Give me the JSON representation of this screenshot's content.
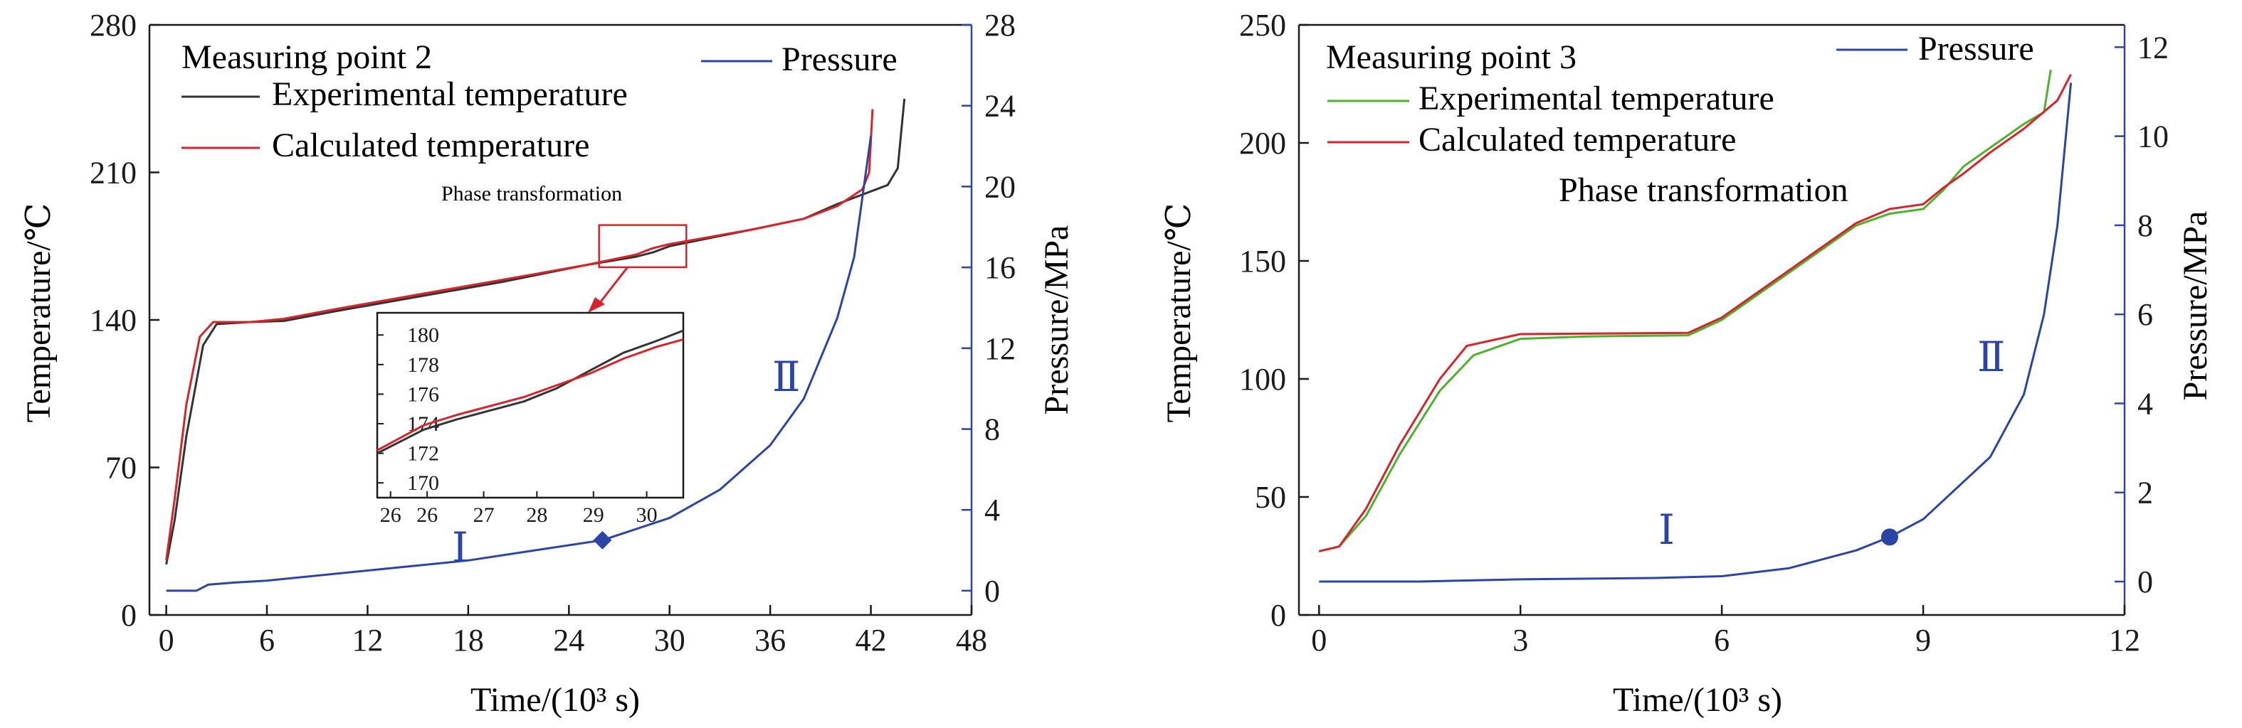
{
  "colors": {
    "axis": "#1a1a1a",
    "pressure_axis": "#2b45a6",
    "pressure": "#2b45a6",
    "calculated": "#d8232a",
    "experimental_1": "#333333",
    "experimental_2": "#4cb32b",
    "highlight_box": "#d8232a"
  },
  "chart_data": [
    {
      "type": "line",
      "panel_title": "Measuring point 2",
      "xlabel": "Time/(10³ s)",
      "ylabel_left": "Temperature/℃",
      "ylabel_right": "Pressure/MPa",
      "xlim": [
        -1,
        48
      ],
      "ylim_left": [
        0,
        280
      ],
      "ylim_right": [
        -1.2,
        28
      ],
      "x_ticks": [
        "0",
        "6",
        "12",
        "18",
        "24",
        "30",
        "36",
        "42",
        "48"
      ],
      "y_left_ticks": [
        "0",
        "70",
        "140",
        "210",
        "280"
      ],
      "y_right_ticks": [
        "0",
        "4",
        "8",
        "12",
        "16",
        "20",
        "24",
        "28"
      ],
      "legend": {
        "pressure": "Pressure",
        "experimental": "Experimental temperature",
        "calculated": "Calculated temperature"
      },
      "series": [
        {
          "name": "Experimental temperature",
          "axis": "left",
          "points": [
            [
              0,
              24
            ],
            [
              0.5,
              45
            ],
            [
              1.2,
              85
            ],
            [
              2.2,
              128
            ],
            [
              3,
              138
            ],
            [
              5,
              139
            ],
            [
              7,
              139.5
            ],
            [
              10,
              144
            ],
            [
              15,
              151
            ],
            [
              20,
              158
            ],
            [
              25,
              166
            ],
            [
              28,
              170
            ],
            [
              29,
              172
            ],
            [
              30,
              175
            ],
            [
              35,
              183
            ],
            [
              38,
              188
            ],
            [
              40,
              195
            ],
            [
              42,
              201
            ],
            [
              43,
              204
            ],
            [
              43.6,
              212
            ],
            [
              44,
              245
            ]
          ]
        },
        {
          "name": "Calculated temperature",
          "axis": "left",
          "points": [
            [
              0,
              26
            ],
            [
              0.5,
              55
            ],
            [
              1.2,
              100
            ],
            [
              2,
              132
            ],
            [
              2.8,
              139
            ],
            [
              5,
              139
            ],
            [
              7,
              140.5
            ],
            [
              10,
              145
            ],
            [
              15,
              152
            ],
            [
              20,
              159
            ],
            [
              25,
              166
            ],
            [
              28,
              171
            ],
            [
              29,
              174
            ],
            [
              30,
              176
            ],
            [
              35,
              183
            ],
            [
              38,
              188
            ],
            [
              40,
              194
            ],
            [
              41.5,
              202
            ],
            [
              41.9,
              210
            ],
            [
              42.1,
              240
            ]
          ]
        },
        {
          "name": "Pressure",
          "axis": "right",
          "points": [
            [
              0,
              0
            ],
            [
              1.8,
              0
            ],
            [
              2.5,
              0.3
            ],
            [
              4,
              0.4
            ],
            [
              6,
              0.5
            ],
            [
              12,
              1.0
            ],
            [
              18,
              1.5
            ],
            [
              22,
              2.0
            ],
            [
              26,
              2.5
            ],
            [
              30,
              3.6
            ],
            [
              33,
              5.0
            ],
            [
              36,
              7.2
            ],
            [
              38,
              9.5
            ],
            [
              40,
              13.5
            ],
            [
              41,
              16.5
            ],
            [
              42,
              22.5
            ]
          ]
        }
      ],
      "marker": {
        "x": 26,
        "y": 2.5,
        "shape": "diamond"
      },
      "annotations": {
        "stage_1": "Ⅰ",
        "stage_2": "Ⅱ"
      },
      "inset": {
        "label": "Phase transformation",
        "xlim": [
          25.8,
          30.4
        ],
        "ylim": [
          169,
          181.5
        ],
        "x_ticks": [
          "26",
          "26",
          "27",
          "28",
          "29",
          "30"
        ],
        "y_ticks": [
          "170",
          "172",
          "174",
          "176",
          "178",
          "180"
        ],
        "experimental": [
          [
            25.8,
            172
          ],
          [
            26.5,
            173.6
          ],
          [
            27,
            174.3
          ],
          [
            28,
            175.5
          ],
          [
            28.5,
            176.4
          ],
          [
            29,
            177.6
          ],
          [
            29.5,
            178.8
          ],
          [
            30,
            179.6
          ],
          [
            30.4,
            180.3
          ]
        ],
        "calculated": [
          [
            25.8,
            172.2
          ],
          [
            26.5,
            173.9
          ],
          [
            27,
            174.6
          ],
          [
            28,
            175.8
          ],
          [
            28.5,
            176.6
          ],
          [
            29,
            177.4
          ],
          [
            29.5,
            178.4
          ],
          [
            30,
            179.2
          ],
          [
            30.4,
            179.7
          ]
        ]
      }
    },
    {
      "type": "line",
      "panel_title": "Measuring point 3",
      "xlabel": "Time/(10³ s)",
      "ylabel_left": "Temperature/℃",
      "ylabel_right": "Pressure/MPa",
      "xlim": [
        -0.3,
        12
      ],
      "ylim_left": [
        0,
        250
      ],
      "ylim_right": [
        -0.75,
        12.5
      ],
      "x_ticks": [
        "0",
        "3",
        "6",
        "9",
        "12"
      ],
      "y_left_ticks": [
        "0",
        "50",
        "100",
        "150",
        "200",
        "250"
      ],
      "y_right_ticks": [
        "0",
        "2",
        "4",
        "6",
        "8",
        "10",
        "12"
      ],
      "legend": {
        "pressure": "Pressure",
        "experimental": "Experimental temperature",
        "calculated": "Calculated temperature"
      },
      "series": [
        {
          "name": "Experimental temperature",
          "axis": "left",
          "points": [
            [
              0,
              27
            ],
            [
              0.3,
              29
            ],
            [
              0.7,
              42
            ],
            [
              1.2,
              68
            ],
            [
              1.8,
              95
            ],
            [
              2.3,
              110
            ],
            [
              3,
              117
            ],
            [
              4,
              118
            ],
            [
              5.5,
              118.5
            ],
            [
              6,
              125
            ],
            [
              7,
              145
            ],
            [
              8,
              165
            ],
            [
              8.5,
              170
            ],
            [
              9,
              172
            ],
            [
              9.3,
              180
            ],
            [
              9.6,
              190
            ],
            [
              10,
              198
            ],
            [
              10.5,
              208
            ],
            [
              10.8,
              213
            ],
            [
              10.9,
              231
            ]
          ]
        },
        {
          "name": "Calculated temperature",
          "axis": "left",
          "points": [
            [
              0,
              27
            ],
            [
              0.3,
              29
            ],
            [
              0.7,
              45
            ],
            [
              1.2,
              72
            ],
            [
              1.8,
              100
            ],
            [
              2.2,
              114
            ],
            [
              3,
              119
            ],
            [
              5.5,
              119.5
            ],
            [
              6,
              126
            ],
            [
              7,
              146
            ],
            [
              8,
              166
            ],
            [
              8.5,
              172
            ],
            [
              9,
              174
            ],
            [
              9.3,
              181
            ],
            [
              9.6,
              187
            ],
            [
              10,
              196
            ],
            [
              10.5,
              206
            ],
            [
              11,
              218
            ],
            [
              11.2,
              229
            ]
          ]
        },
        {
          "name": "Pressure",
          "axis": "right",
          "points": [
            [
              0,
              0
            ],
            [
              1.5,
              0
            ],
            [
              3,
              0.05
            ],
            [
              5,
              0.08
            ],
            [
              6,
              0.12
            ],
            [
              7,
              0.3
            ],
            [
              8,
              0.7
            ],
            [
              8.5,
              1.0
            ],
            [
              9,
              1.4
            ],
            [
              10,
              2.8
            ],
            [
              10.5,
              4.2
            ],
            [
              10.8,
              6.0
            ],
            [
              11,
              8.0
            ],
            [
              11.2,
              11.2
            ]
          ]
        }
      ],
      "marker": {
        "x": 8.5,
        "y": 1.0,
        "shape": "circle"
      },
      "annotations": {
        "stage_1": "Ⅰ",
        "stage_2": "Ⅱ",
        "phase": "Phase transformation"
      }
    }
  ]
}
